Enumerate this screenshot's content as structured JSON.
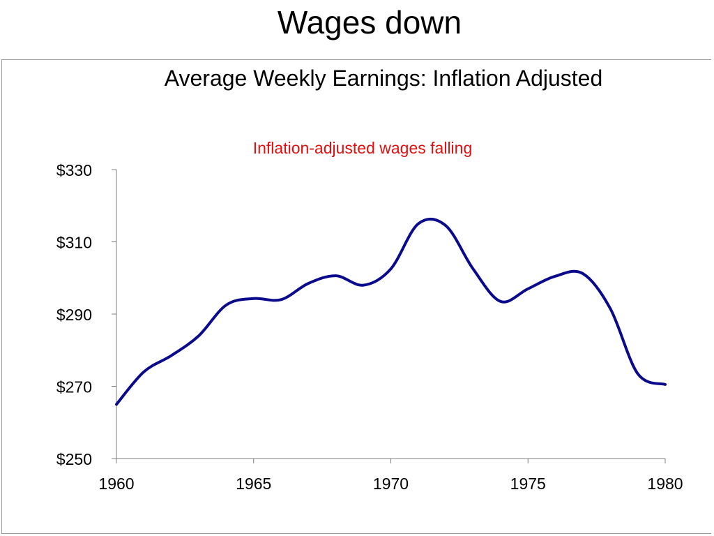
{
  "slide": {
    "title": "Wages down"
  },
  "colors": {
    "line": "#0a0a8c",
    "annotation": "#e01010",
    "axis": "#7f7f7f"
  },
  "chart_data": {
    "type": "line",
    "title": "Average Weekly Earnings: Inflation Adjusted",
    "annotation": "Inflation-adjusted wages falling",
    "xlabel": "",
    "ylabel": "",
    "xlim": [
      1960,
      1980
    ],
    "ylim": [
      250,
      330
    ],
    "x_ticks": [
      1960,
      1965,
      1970,
      1975,
      1980
    ],
    "x_tick_labels": [
      "1960",
      "1965",
      "1970",
      "1975",
      "1980"
    ],
    "y_ticks": [
      250,
      270,
      290,
      310,
      330
    ],
    "y_tick_labels": [
      "$250",
      "$270",
      "$290",
      "$310",
      "$330"
    ],
    "grid": false,
    "legend": "none",
    "series": [
      {
        "x": [
          1960,
          1961,
          1962,
          1963,
          1964,
          1965,
          1966,
          1967,
          1968,
          1969,
          1970,
          1971,
          1972,
          1973,
          1974,
          1975,
          1976,
          1977,
          1978,
          1979,
          1980
        ],
        "values": [
          265,
          274,
          278.5,
          284,
          292.5,
          294.3,
          294,
          298.5,
          300.6,
          298,
          302.5,
          315,
          314.5,
          302.5,
          293.5,
          297,
          300.5,
          301.2,
          291.5,
          273.5,
          270.5
        ]
      }
    ]
  }
}
